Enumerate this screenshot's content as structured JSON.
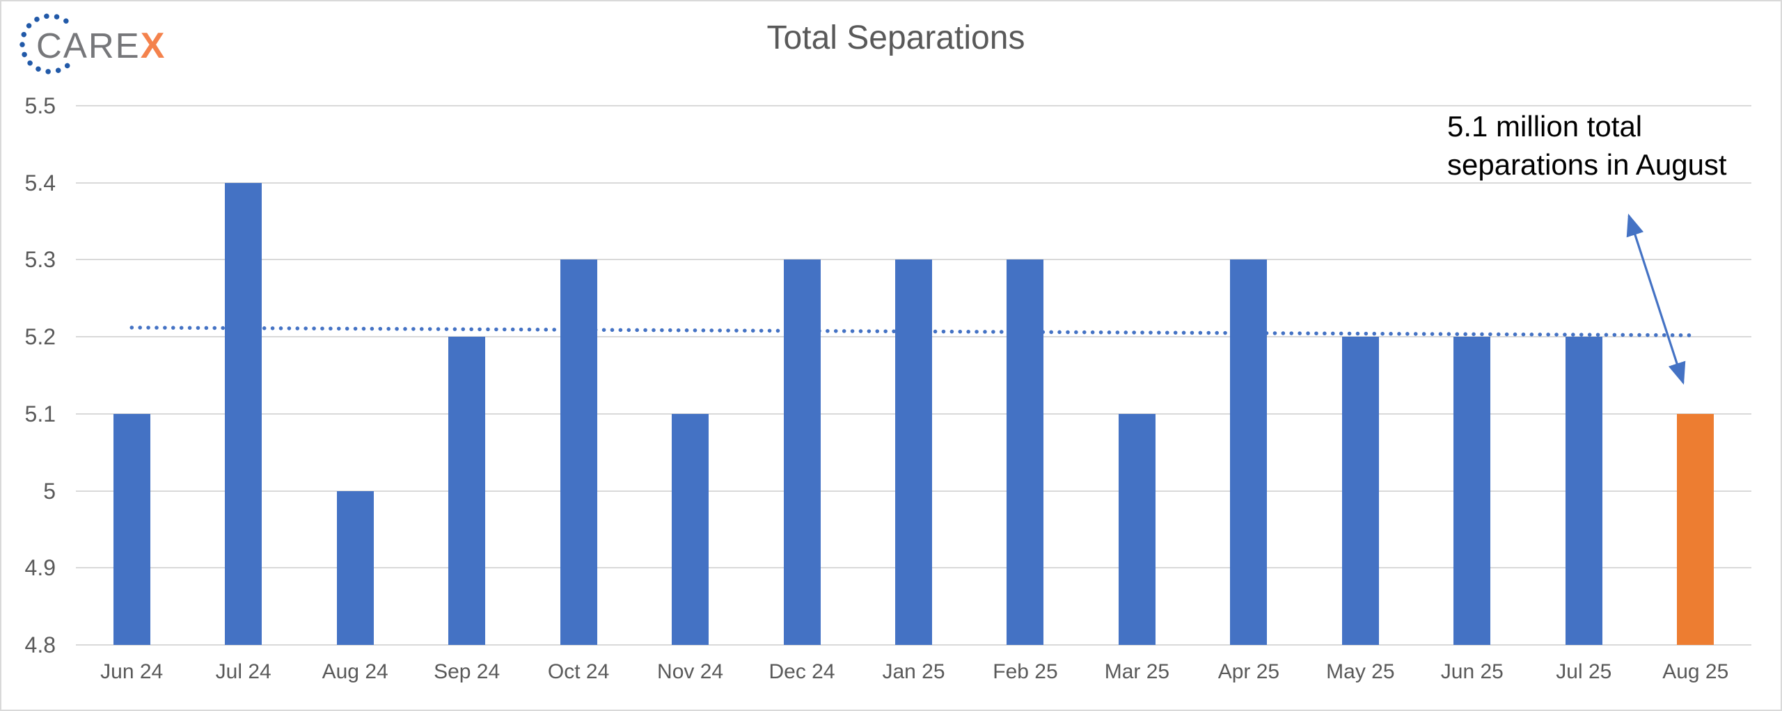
{
  "logo": {
    "text_primary": "CARE",
    "text_accent": "X"
  },
  "chart_data": {
    "type": "bar",
    "title": "Total Separations",
    "unit": "millions",
    "categories": [
      "Jun 24",
      "Jul 24",
      "Aug 24",
      "Sep 24",
      "Oct 24",
      "Nov 24",
      "Dec 24",
      "Jan 25",
      "Feb 25",
      "Mar 25",
      "Apr 25",
      "May 25",
      "Jun 25",
      "Jul 25",
      "Aug 25"
    ],
    "values": [
      5.1,
      5.4,
      5.0,
      5.2,
      5.3,
      5.1,
      5.3,
      5.3,
      5.3,
      5.1,
      5.3,
      5.2,
      5.2,
      5.2,
      5.1
    ],
    "highlight_index": 14,
    "ylim": [
      4.8,
      5.5
    ],
    "yticks": [
      5.5,
      5.4,
      5.3,
      5.2,
      5.1,
      5.0,
      4.9,
      4.8
    ],
    "ytick_labels": [
      "5.5",
      "5.4",
      "5.3",
      "5.2",
      "5.1",
      "5",
      "4.9",
      "4.8"
    ],
    "grid": true,
    "legend": false,
    "xlabel": "",
    "ylabel": "",
    "trendline": {
      "style": "dotted",
      "start_value": 5.212,
      "end_value": 5.202
    },
    "annotation": {
      "line1": "5.1 million total",
      "line2": "separations in August",
      "arrow": "double-headed"
    },
    "colors": {
      "bar": "#4472C4",
      "highlight": "#ED7D31",
      "gridline": "#D9D9D9",
      "axis_text": "#595959",
      "title_text": "#595959",
      "trendline": "#4472C4",
      "arrow": "#4472C4",
      "annotation_text": "#000000",
      "logo_text": "#76777A",
      "logo_accent": "#F4824C",
      "logo_dots": "#2159A8"
    }
  }
}
